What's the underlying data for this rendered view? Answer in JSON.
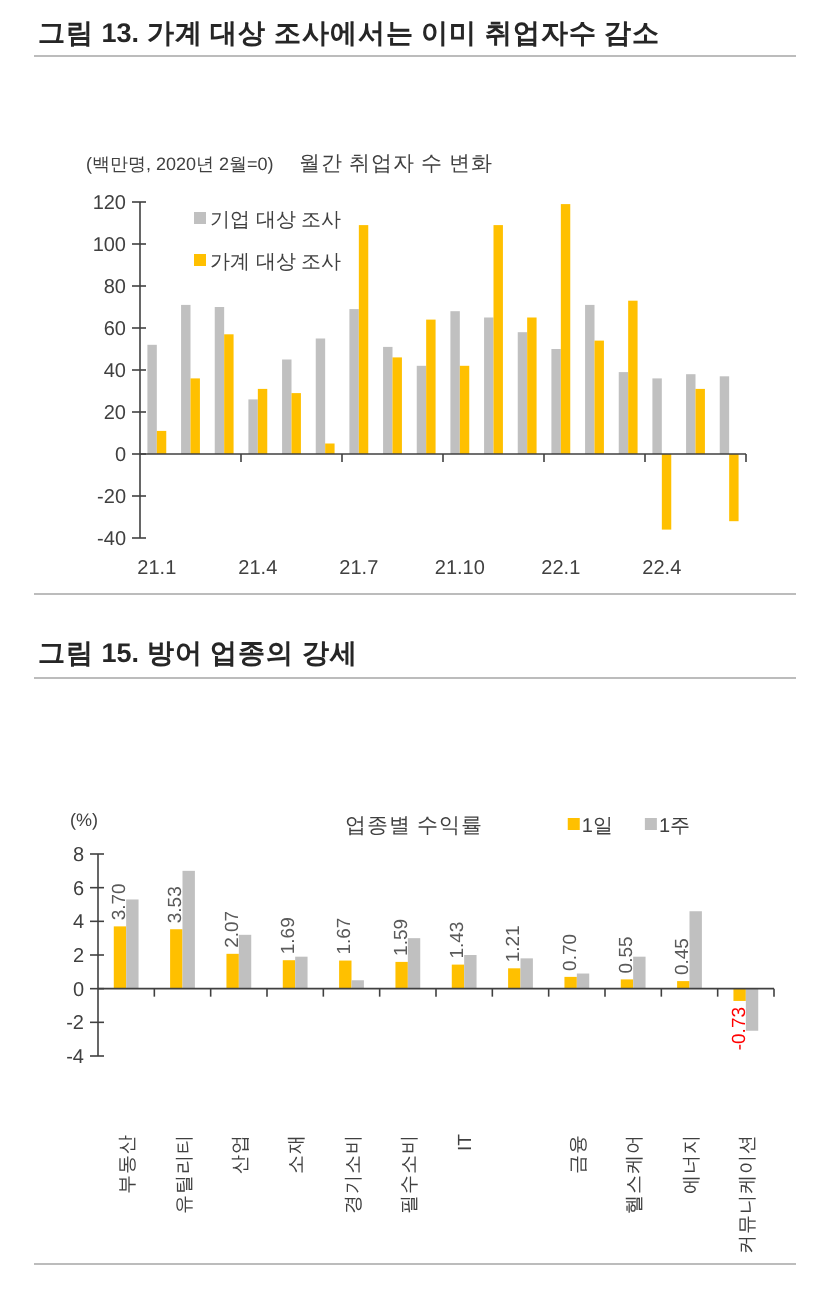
{
  "chart_data": [
    {
      "type": "bar",
      "title": "그림 13. 가계 대상 조사에서는 이미 취업자수 감소",
      "subtitle": "월간 취업자 수 변화",
      "ylabel": "(백만명, 2020년 2월=0)",
      "categories": [
        "21.1",
        null,
        null,
        "21.4",
        null,
        null,
        "21.7",
        null,
        null,
        "21.10",
        null,
        null,
        "22.1",
        null,
        null,
        "22.4",
        null,
        null
      ],
      "series": [
        {
          "name": "기업 대상 조사",
          "color": "#c0c0c0",
          "values": [
            52,
            71,
            70,
            26,
            45,
            55,
            69,
            51,
            42,
            68,
            65,
            58,
            50,
            71,
            39,
            36,
            38,
            37
          ]
        },
        {
          "name": "가계 대상 조사",
          "color": "#ffc000",
          "values": [
            11,
            36,
            57,
            31,
            29,
            5,
            109,
            46,
            64,
            42,
            109,
            65,
            119,
            54,
            73,
            -36,
            31,
            -32
          ]
        }
      ],
      "ylim": [
        -40,
        120
      ],
      "yticks": [
        -40,
        -20,
        0,
        20,
        40,
        60,
        80,
        100,
        120
      ],
      "legend": "top left"
    },
    {
      "type": "bar",
      "title": "그림 15. 방어 업종의 강세",
      "subtitle": "업종별 수익률",
      "ylabel": "(%)",
      "categories": [
        "부동산",
        "유틸리티",
        "산업",
        "소재",
        "경기소비",
        "필수소비",
        "IT",
        null,
        "금융",
        "헬스케어",
        "에너지",
        "커뮤니케이션"
      ],
      "series": [
        {
          "name": "1일",
          "color": "#ffc000",
          "values": [
            3.7,
            3.53,
            2.07,
            1.69,
            1.67,
            1.59,
            1.43,
            1.21,
            0.7,
            0.55,
            0.45,
            -0.73
          ],
          "value_labels": [
            "3.70",
            "3.53",
            "2.07",
            "1.69",
            "1.67",
            "1.59",
            "1.43",
            "1.21",
            "0.70",
            "0.55",
            "0.45",
            "-0.73"
          ]
        },
        {
          "name": "1주",
          "color": "#c0c0c0",
          "values": [
            5.3,
            7.0,
            3.2,
            1.9,
            0.5,
            3.0,
            2.0,
            1.8,
            0.9,
            1.9,
            4.6,
            -2.5
          ]
        }
      ],
      "ylim": [
        -4,
        8
      ],
      "yticks": [
        -4,
        -2,
        0,
        2,
        4,
        6,
        8
      ],
      "legend": "top right"
    }
  ]
}
